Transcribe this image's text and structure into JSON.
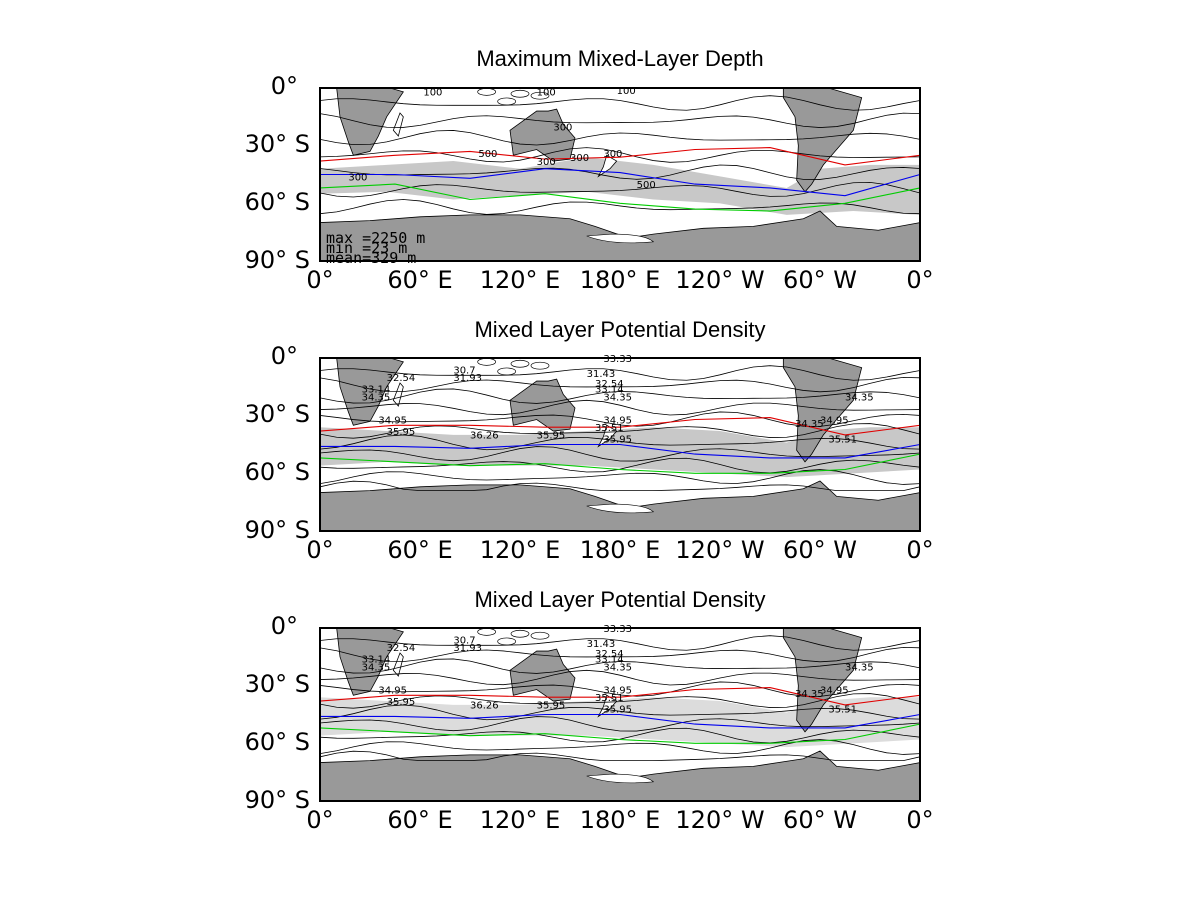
{
  "chart_data": [
    {
      "type": "contour",
      "title": "Maximum Mixed-Layer Depth",
      "xlabel": "",
      "ylabel": "",
      "x_ticks": [
        "0°",
        "60° E",
        "120° E",
        "180° E",
        "120° W",
        "60° W",
        "0°"
      ],
      "y_ticks": [
        "0°",
        "30° S",
        "60° S",
        "90° S"
      ],
      "xlim": [
        0,
        360
      ],
      "ylim": [
        -90,
        0
      ],
      "contour_labels": [
        "100",
        "100",
        "100",
        "300",
        "300",
        "300",
        "300",
        "500",
        "300",
        "500"
      ],
      "fronts": [
        {
          "color": "#e00000",
          "lat": [
            -38,
            -35,
            -33,
            -37,
            -36,
            -32,
            -31,
            -40,
            -35
          ]
        },
        {
          "color": "#0000ee",
          "lat": [
            -45,
            -45,
            -47,
            -42,
            -44,
            -50,
            -52,
            -56,
            -45
          ]
        },
        {
          "color": "#00cc00",
          "lat": [
            -52,
            -50,
            -58,
            -55,
            -60,
            -63,
            -64,
            -60,
            -52
          ]
        }
      ],
      "stats": {
        "max": "max  =2250 m",
        "min": "min  =23 m",
        "mean": "mean=329 m"
      }
    },
    {
      "type": "contour",
      "title": "Mixed Layer Potential Density",
      "xlabel": "",
      "ylabel": "",
      "x_ticks": [
        "0°",
        "60° E",
        "120° E",
        "180° E",
        "120° W",
        "60° W",
        "0°"
      ],
      "y_ticks": [
        "0°",
        "30° S",
        "60° S",
        "90° S"
      ],
      "xlim": [
        0,
        360
      ],
      "ylim": [
        -90,
        0
      ],
      "contour_labels": [
        "33.33",
        "30.7",
        "31.43",
        "32.54",
        "31.93",
        "32.54",
        "33.14",
        "33.14",
        "34.35",
        "34.35",
        "34.35",
        "34.95",
        "34.95",
        "34.95",
        "35.51",
        "35.95",
        "35.95",
        "35.95",
        "35.51",
        "36.26",
        "34.35"
      ],
      "fronts": [
        {
          "color": "#e00000",
          "lat": [
            -38,
            -35,
            -35,
            -36,
            -36,
            -32,
            -31,
            -40,
            -35
          ]
        },
        {
          "color": "#0000ee",
          "lat": [
            -46,
            -46,
            -47,
            -45,
            -45,
            -50,
            -52,
            -52,
            -45
          ]
        },
        {
          "color": "#00cc00",
          "lat": [
            -52,
            -54,
            -56,
            -55,
            -58,
            -60,
            -60,
            -58,
            -50
          ]
        }
      ]
    },
    {
      "type": "contour",
      "title": "Mixed Layer Potential Density",
      "xlabel": "",
      "ylabel": "",
      "x_ticks": [
        "0°",
        "60° E",
        "120° E",
        "180° E",
        "120° W",
        "60° W",
        "0°"
      ],
      "y_ticks": [
        "0°",
        "30° S",
        "60° S",
        "90° S"
      ],
      "xlim": [
        0,
        360
      ],
      "ylim": [
        -90,
        0
      ],
      "contour_labels": [
        "33.33",
        "30.7",
        "31.43",
        "32.54",
        "31.93",
        "32.54",
        "33.14",
        "33.14",
        "34.35",
        "34.35",
        "34.35",
        "34.95",
        "34.95",
        "34.95",
        "35.51",
        "35.95",
        "35.95",
        "35.95",
        "35.51",
        "36.26",
        "34.35"
      ],
      "fronts": [
        {
          "color": "#e00000",
          "lat": [
            -38,
            -35,
            -35,
            -36,
            -36,
            -32,
            -31,
            -40,
            -35
          ]
        },
        {
          "color": "#0000ee",
          "lat": [
            -46,
            -46,
            -47,
            -45,
            -45,
            -50,
            -52,
            -52,
            -45
          ]
        },
        {
          "color": "#00cc00",
          "lat": [
            -52,
            -54,
            -56,
            -55,
            -58,
            -60,
            -60,
            -58,
            -50
          ]
        }
      ]
    }
  ],
  "colors": {
    "land": "#999999",
    "shade": "#c8c8c8",
    "shade_light": "#dcdcdc",
    "frame": "#000000"
  }
}
